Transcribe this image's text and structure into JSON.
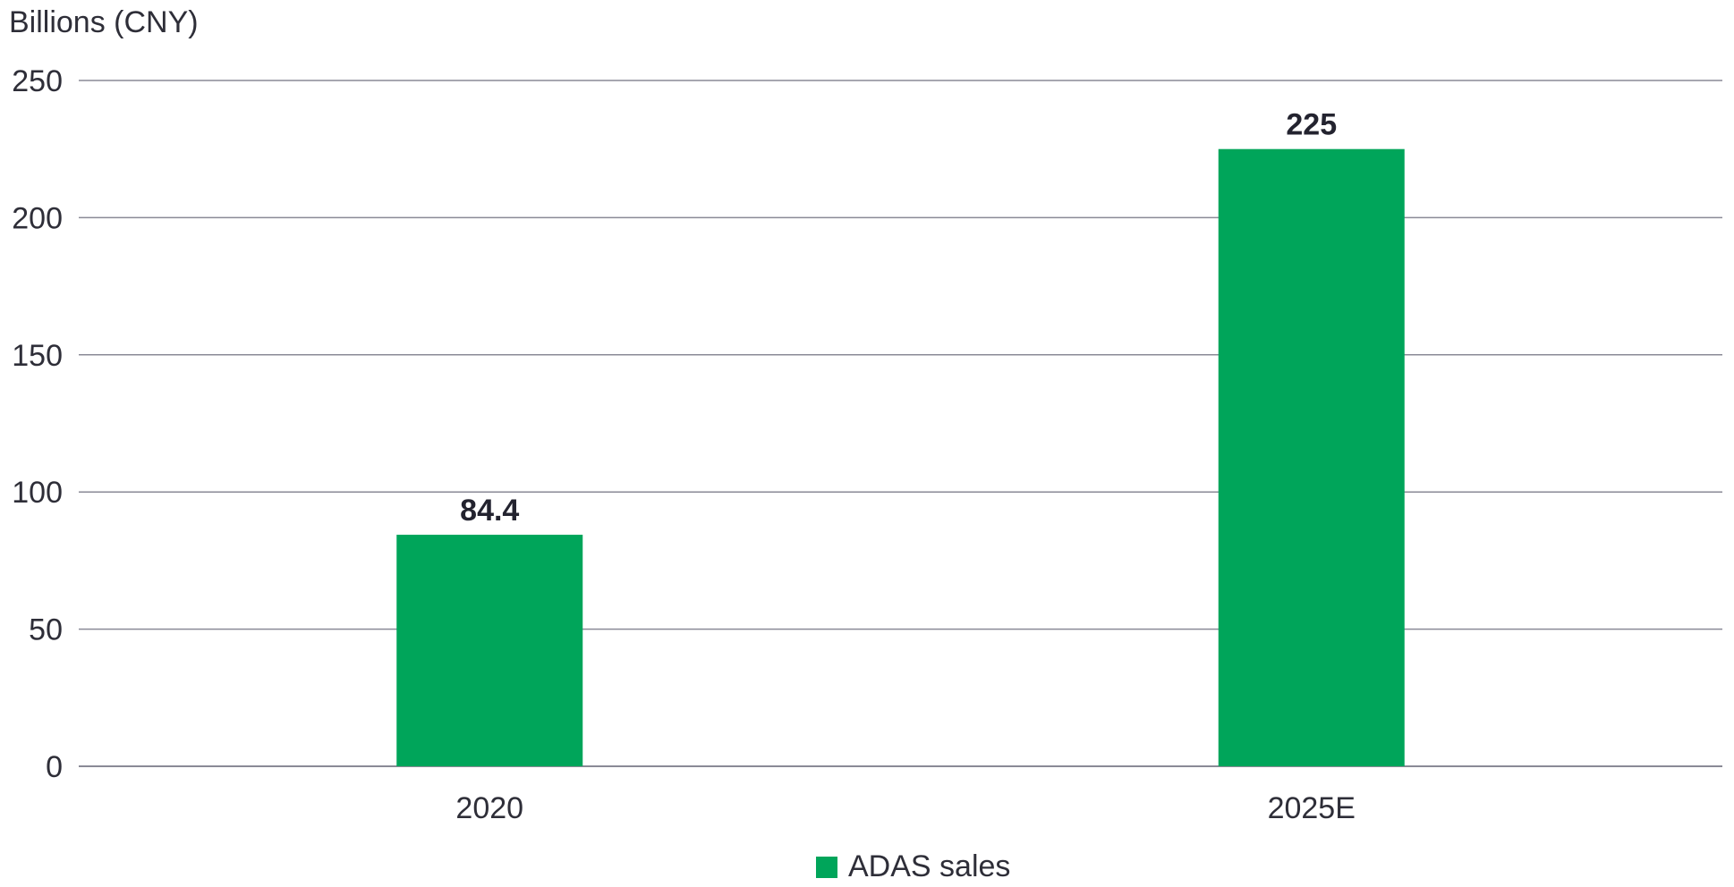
{
  "chart_data": {
    "type": "bar",
    "title": "",
    "ylabel": "Billions (CNY)",
    "xlabel": "",
    "categories": [
      "2020",
      "2025E"
    ],
    "series": [
      {
        "name": "ADAS sales",
        "values": [
          84.4,
          225
        ],
        "data_labels": [
          "84.4",
          "225"
        ]
      }
    ],
    "ylim": [
      0,
      250
    ],
    "yticks": [
      0,
      50,
      100,
      150,
      200,
      250
    ],
    "ytick_labels": [
      "0",
      "50",
      "100",
      "150",
      "200",
      "250"
    ],
    "grid": true,
    "legend_position": "bottom-center",
    "colors": {
      "bar": "#00a55a",
      "grid": "#8a8a96",
      "text": "#2e2e38",
      "data_label": "#23232f"
    }
  }
}
